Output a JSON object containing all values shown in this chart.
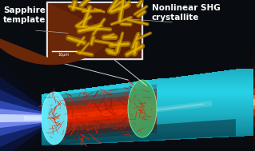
{
  "bg_color": "#080c10",
  "title_left": "Sapphire\ntemplate",
  "title_right": "Nonlinear SHG\ncrystallite",
  "scale_bar_text": "10μm",
  "text_color": "#ffffff",
  "annotation_color": "#cccccc",
  "fiber_teal_mid": "#1ab8cc",
  "fiber_teal_light": "#55dde8",
  "fiber_teal_dark": "#0a7080",
  "fiber_teal_vdark": "#053840",
  "left_cap_color": "#88eeff",
  "cut_green": "#55cc88",
  "cut_green_light": "#88ffaa",
  "core_dark": "#660000",
  "core_mid": "#aa1100",
  "core_bright": "#cc2200",
  "spike_dark": "#991100",
  "spike_bright": "#dd2200",
  "inset_brown_dark": "#5a2008",
  "inset_brown_mid": "#7a3010",
  "inset_gold_dark": "#a07000",
  "inset_gold_mid": "#c89000",
  "inset_gold_light": "#e8b800",
  "inset_border": "#dddddd",
  "blue_beam_outer": "#1122aa",
  "blue_beam_mid": "#3355cc",
  "blue_beam_inner": "#8899ee",
  "white_beam": "#ccddff",
  "red_beam_outer": "#881100",
  "red_beam_mid": "#cc2200",
  "red_beam_inner": "#ff6644",
  "orange_beam": "#ffaa66"
}
